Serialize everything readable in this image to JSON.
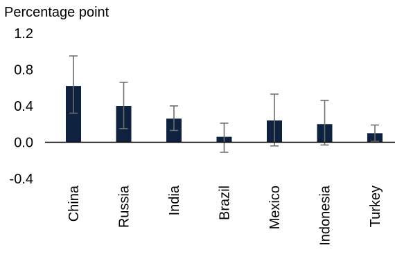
{
  "chart_data": {
    "type": "bar",
    "title": "",
    "xlabel": "",
    "ylabel": "Percentage point",
    "ylim": [
      -0.4,
      1.2
    ],
    "yticks": [
      "1.2",
      "0.8",
      "0.4",
      "0.0",
      "-0.4"
    ],
    "ytick_values": [
      1.2,
      0.8,
      0.4,
      0.0,
      -0.4
    ],
    "categories": [
      "China",
      "Russia",
      "India",
      "Brazil",
      "Mexico",
      "Indonesia",
      "Turkey"
    ],
    "values": [
      0.62,
      0.4,
      0.26,
      0.06,
      0.24,
      0.2,
      0.1
    ],
    "error_low": [
      0.32,
      0.15,
      0.13,
      -0.11,
      -0.04,
      -0.03,
      0.01
    ],
    "error_high": [
      0.95,
      0.66,
      0.4,
      0.21,
      0.53,
      0.46,
      0.19
    ],
    "grid": false,
    "colors": {
      "bar": "#0e2240",
      "error": "#6e6e6e",
      "axis": "#000000"
    }
  }
}
